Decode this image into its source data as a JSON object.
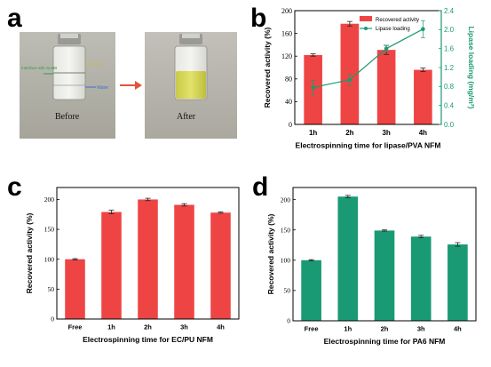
{
  "panels": {
    "a": {
      "letter": "a",
      "before_label": "Before",
      "after_label": "After",
      "oil_label": "Oil",
      "interface_label": "Interface with SLMB",
      "water_label": "Water"
    },
    "b": {
      "letter": "b"
    },
    "c": {
      "letter": "c"
    },
    "d": {
      "letter": "d"
    }
  },
  "colors": {
    "red": "#ef4444",
    "green": "#1a9a74",
    "black": "#000000"
  },
  "chart_data": [
    {
      "id": "b",
      "type": "bar",
      "categories": [
        "1h",
        "2h",
        "3h",
        "4h"
      ],
      "series": [
        {
          "name": "Recovered activity",
          "kind": "bar",
          "axis": "left",
          "values": [
            122,
            177,
            131,
            96
          ],
          "errors": [
            2,
            4,
            8,
            3
          ],
          "color": "#ef4444"
        },
        {
          "name": "Lipase loading",
          "kind": "line",
          "axis": "right",
          "values": [
            0.78,
            0.94,
            1.6,
            2.01
          ],
          "errors": [
            0.15,
            0.12,
            0.07,
            0.18
          ],
          "color": "#1a9a74"
        }
      ],
      "xlabel": "Electrospinning time for lipase/PVA NFM",
      "ylabel": "Recovered activity (%)",
      "y2label": "Lipase loading (mg/m²)",
      "ylim": [
        0,
        200
      ],
      "yticks": [
        0,
        40,
        80,
        120,
        160,
        200
      ],
      "y2lim": [
        0,
        2.4
      ],
      "y2ticks": [
        "0.0",
        "0.4",
        "0.8",
        "1.2",
        "1.6",
        "2.0",
        "2.4"
      ],
      "legend": "top-right"
    },
    {
      "id": "c",
      "type": "bar",
      "categories": [
        "Free",
        "1h",
        "2h",
        "3h",
        "4h"
      ],
      "series": [
        {
          "values": [
            100,
            179,
            200,
            191,
            178
          ],
          "errors": [
            1,
            3,
            2,
            2,
            1
          ],
          "color": "#ef4444"
        }
      ],
      "xlabel": "Electrospinning time for EC/PU NFM",
      "ylabel": "Recovered activity (%)",
      "ylim": [
        0,
        220
      ],
      "yticks": [
        0,
        50,
        100,
        150,
        200
      ]
    },
    {
      "id": "d",
      "type": "bar",
      "categories": [
        "Free",
        "1h",
        "2h",
        "3h",
        "4h"
      ],
      "series": [
        {
          "values": [
            100,
            205,
            149,
            139,
            126
          ],
          "errors": [
            1,
            2,
            1,
            2,
            3
          ],
          "color": "#1a9a74"
        }
      ],
      "xlabel": "Electrospinning time for PA6 NFM",
      "ylabel": "Recovered activity (%)",
      "ylim": [
        0,
        220
      ],
      "yticks": [
        0,
        50,
        100,
        150,
        200
      ]
    }
  ]
}
